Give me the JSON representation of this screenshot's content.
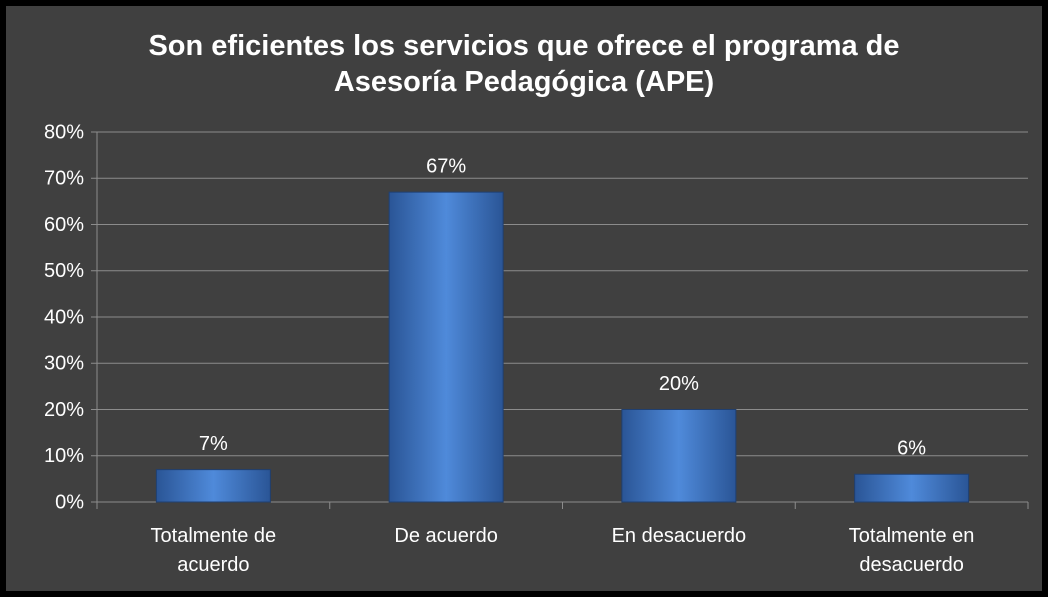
{
  "chart_data": {
    "type": "bar",
    "title": "Son eficientes los servicios que ofrece el programa de Asesoría Pedagógica (APE)",
    "categories": [
      "Totalmente de acuerdo",
      "De acuerdo",
      "En desacuerdo",
      "Totalmente en desacuerdo"
    ],
    "values": [
      7,
      67,
      20,
      6
    ],
    "value_labels": [
      "7%",
      "67%",
      "20%",
      "6%"
    ],
    "color": "#3f78c9",
    "ylim": [
      0,
      80
    ],
    "yticks": [
      {
        "value": 0,
        "label": "0%"
      },
      {
        "value": 10,
        "label": "10%"
      },
      {
        "value": 20,
        "label": "20%"
      },
      {
        "value": 30,
        "label": "30%"
      },
      {
        "value": 40,
        "label": "40%"
      },
      {
        "value": 50,
        "label": "50%"
      },
      {
        "value": 60,
        "label": "60%"
      },
      {
        "value": 70,
        "label": "70%"
      },
      {
        "value": 80,
        "label": "80%"
      }
    ],
    "grid": true
  }
}
